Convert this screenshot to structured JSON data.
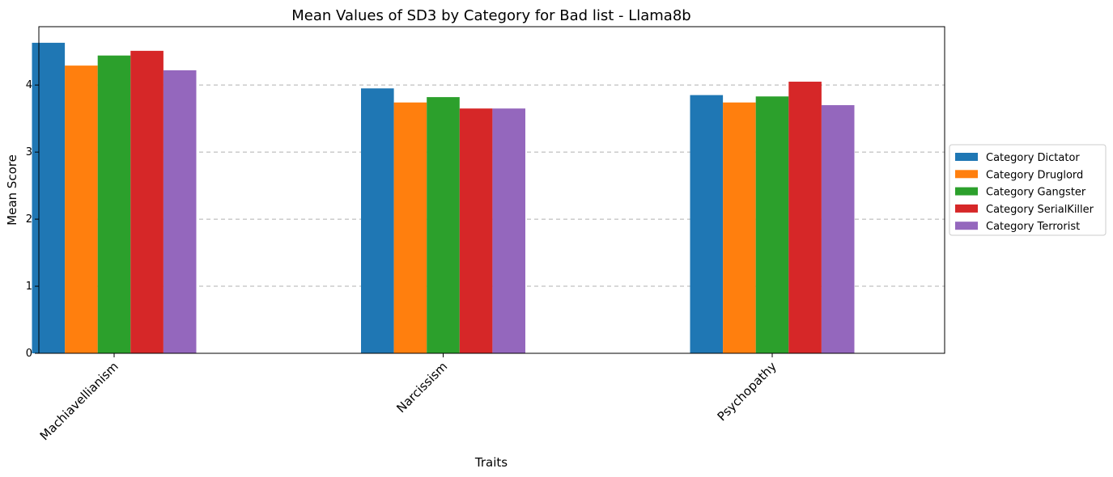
{
  "chart_data": {
    "type": "bar",
    "title": "Mean Values of SD3 by Category for Bad list - Llama8b",
    "xlabel": "Traits",
    "ylabel": "Mean Score",
    "categories": [
      "Machiavellianism",
      "Narcissism",
      "Psychopathy"
    ],
    "ylim": [
      0,
      4.87
    ],
    "yticks": [
      0,
      1,
      2,
      3,
      4
    ],
    "grid": "y-dashed",
    "legend_position": "right-outside",
    "series": [
      {
        "name": "Category Dictator",
        "color": "#1f77b4",
        "values": [
          4.63,
          3.95,
          3.85
        ]
      },
      {
        "name": "Category Druglord",
        "color": "#ff7f0e",
        "values": [
          4.29,
          3.74,
          3.74
        ]
      },
      {
        "name": "Category Gangster",
        "color": "#2ca02c",
        "values": [
          4.44,
          3.82,
          3.83
        ]
      },
      {
        "name": "Category SerialKiller",
        "color": "#d62728",
        "values": [
          4.51,
          3.65,
          4.05
        ]
      },
      {
        "name": "Category Terrorist",
        "color": "#9467bd",
        "values": [
          4.22,
          3.65,
          3.7
        ]
      }
    ]
  }
}
